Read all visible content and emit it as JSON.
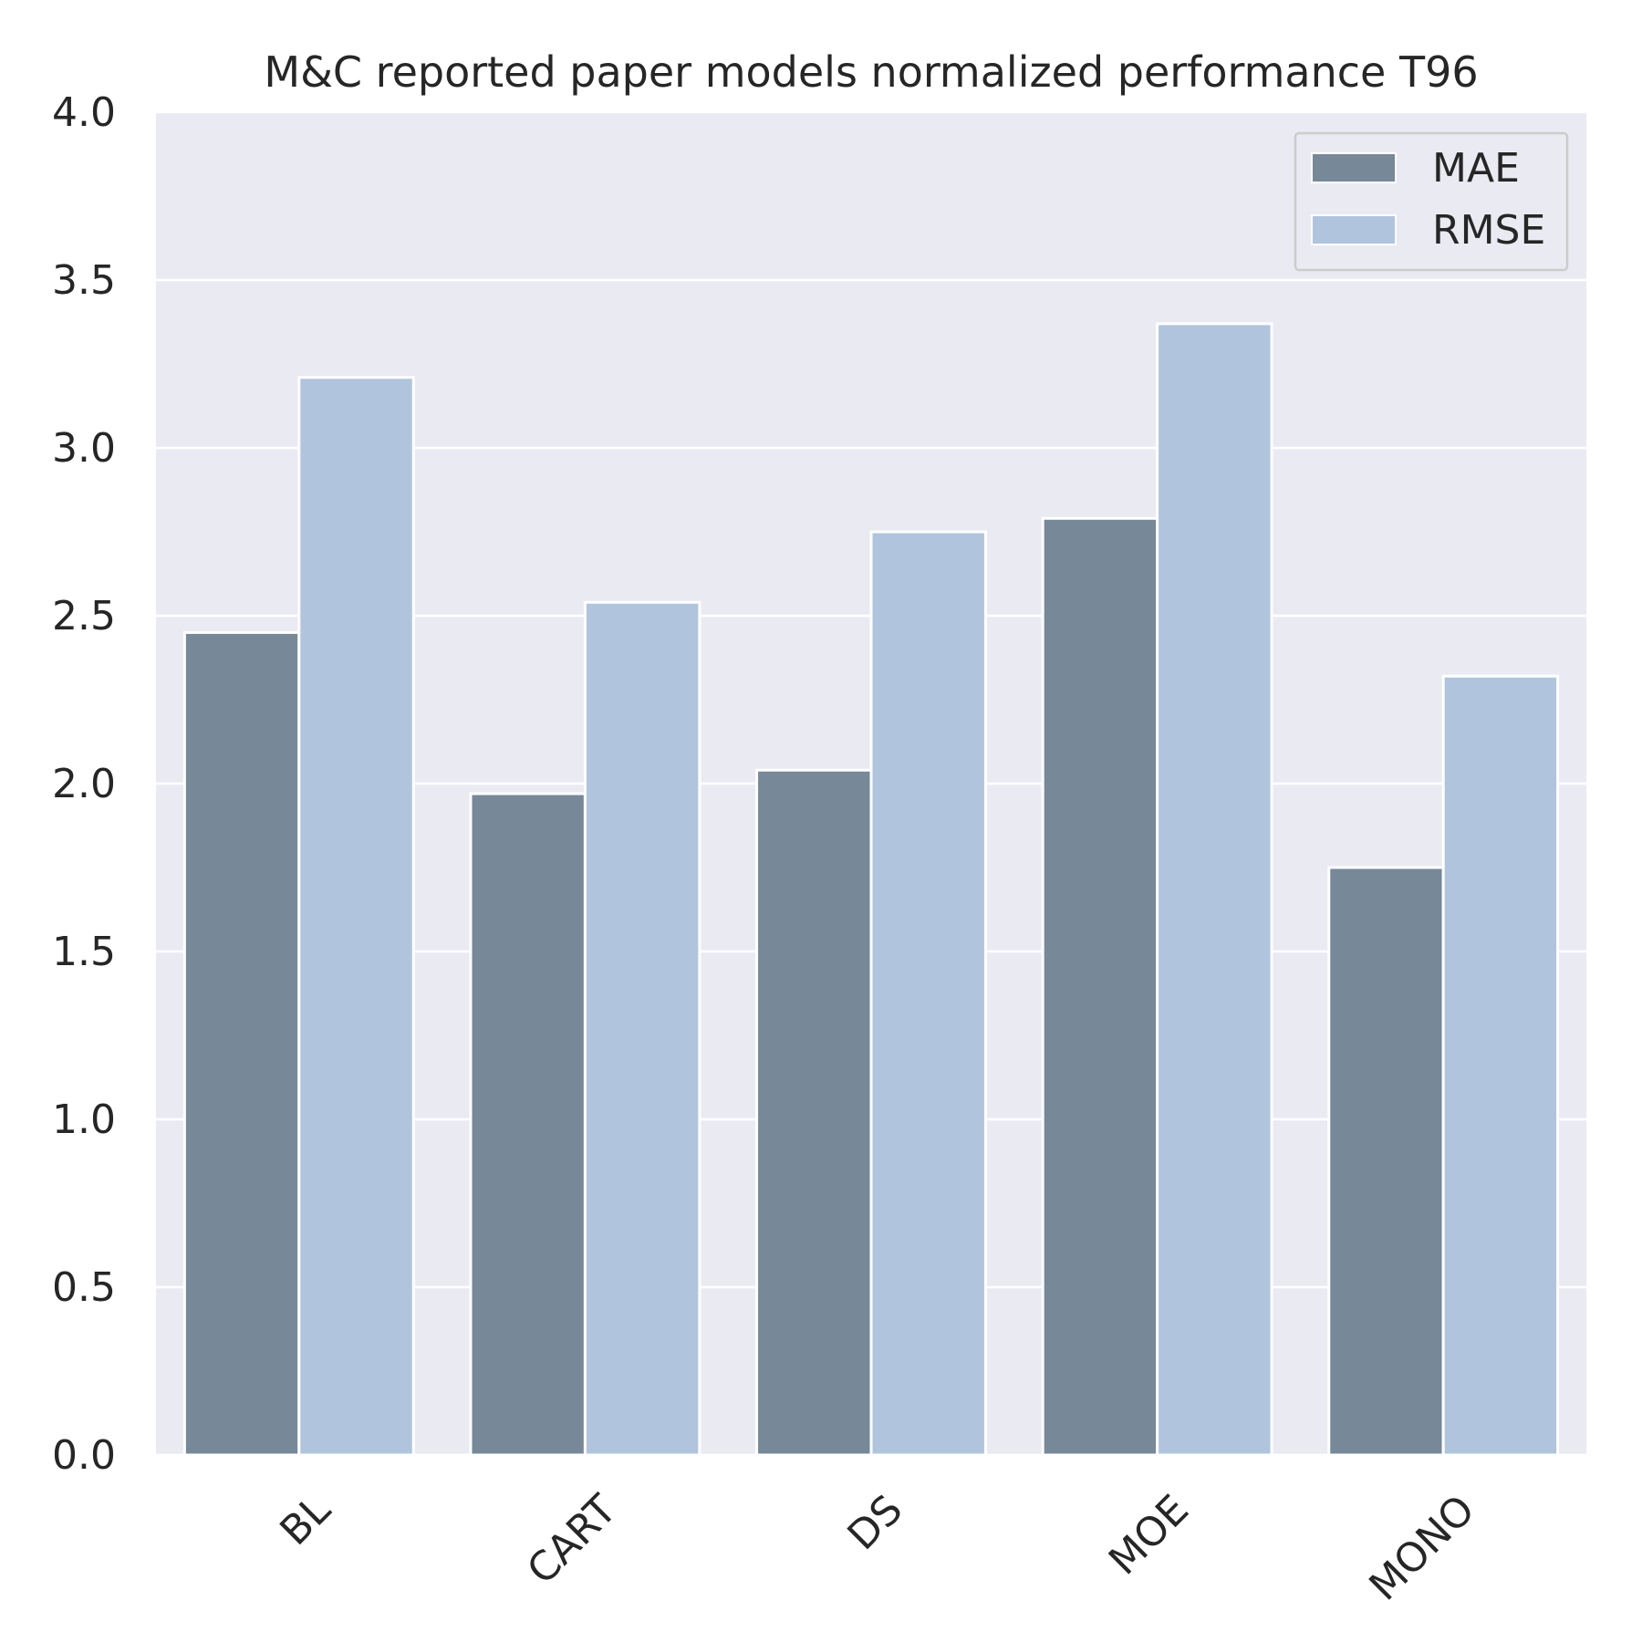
{
  "chart_data": {
    "type": "bar",
    "title": "M&C reported paper models normalized performance T96",
    "xlabel": "",
    "ylabel": "",
    "categories": [
      "BL",
      "CART",
      "DS",
      "MOE",
      "MONO"
    ],
    "series": [
      {
        "name": "MAE",
        "color": "#778899",
        "values": [
          2.45,
          1.97,
          2.04,
          2.79,
          1.75
        ]
      },
      {
        "name": "RMSE",
        "color": "#B0C4DE",
        "values": [
          3.21,
          2.54,
          2.75,
          3.37,
          2.32
        ]
      }
    ],
    "ylim": [
      0,
      4.0
    ],
    "yticks": [
      "0.0",
      "0.5",
      "1.0",
      "1.5",
      "2.0",
      "2.5",
      "3.0",
      "3.5",
      "4.0"
    ],
    "grid": true,
    "legend_position": "top-right",
    "background_color": "#EAEAF2",
    "grid_color": "#FFFFFF"
  }
}
